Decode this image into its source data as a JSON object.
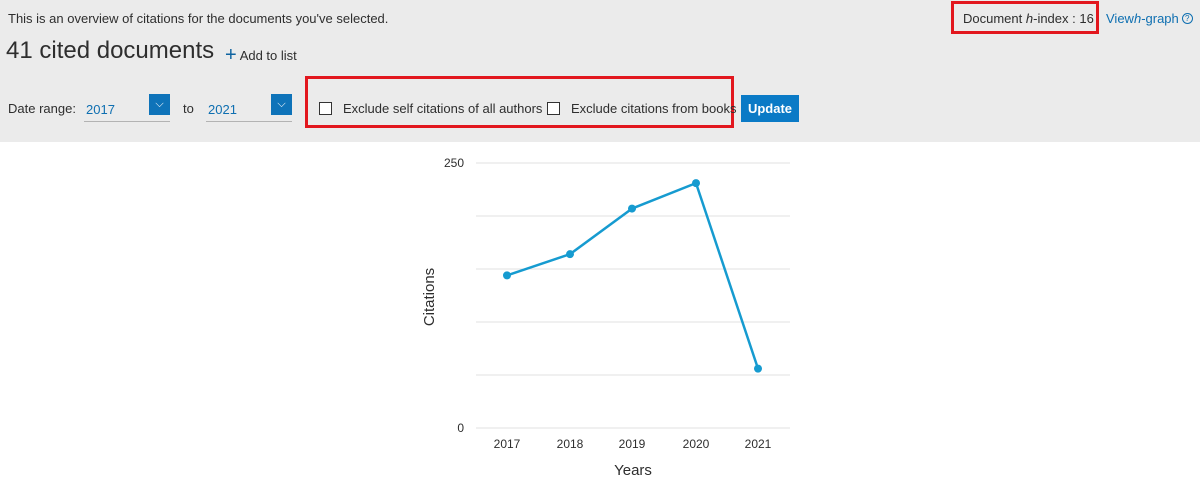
{
  "header": {
    "overview_text": "This is an overview of citations for the documents you've selected.",
    "cited_documents": "41 cited documents",
    "add_to_list": "Add to list",
    "hindex_prefix": "Document ",
    "hindex_h": "h",
    "hindex_suffix": "-index : 16",
    "view_prefix": "View ",
    "view_h": "h",
    "view_suffix": "-graph",
    "help_glyph": "?"
  },
  "filters": {
    "date_range_label": "Date range:",
    "from_year": "2017",
    "to_label": "to",
    "to_year": "2021",
    "exclude_self": "Exclude self citations of all authors",
    "exclude_books": "Exclude citations from books",
    "update_label": "Update"
  },
  "colors": {
    "accent": "#0e73b9",
    "line": "#169bd0",
    "highlight": "#e2171e"
  },
  "chart_data": {
    "type": "line",
    "x": [
      "2017",
      "2018",
      "2019",
      "2020",
      "2021"
    ],
    "values": [
      144,
      164,
      207,
      231,
      56
    ],
    "xlabel": "Years",
    "ylabel": "Citations",
    "ylim": [
      0,
      250
    ],
    "ytick_labels": [
      "0",
      "250"
    ],
    "grid": true
  }
}
